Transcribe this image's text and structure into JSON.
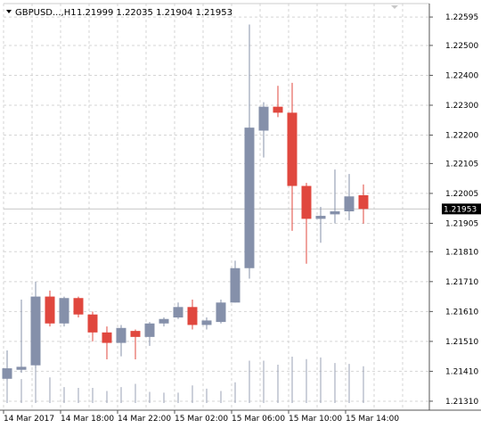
{
  "header": {
    "symbol_label": "GBPUSD...,H1",
    "ohlc_text": "1.21999 1.22035 1.21904 1.21953",
    "menu_arrow": "triangle-down-icon",
    "collapse_arrow": "triangle-down-small-icon"
  },
  "colors": {
    "bull": "#8590aa",
    "bear": "#e0473e",
    "grid": "#d5d5d5",
    "axis": "#555555",
    "price_line": "#c8c8c8",
    "price_tag_bg": "#000000"
  },
  "chart_data": {
    "type": "candlestick",
    "ylim": [
      1.2128,
      1.2264
    ],
    "y_ticks": [
      "1.22595",
      "1.22500",
      "1.22400",
      "1.22300",
      "1.22200",
      "1.22105",
      "1.22005",
      "1.21905",
      "1.21810",
      "1.21710",
      "1.21610",
      "1.21510",
      "1.21410",
      "1.21310"
    ],
    "x_ticks": [
      "14 Mar 2017",
      "14 Mar 18:00",
      "14 Mar 22:00",
      "15 Mar 02:00",
      "15 Mar 06:00",
      "15 Mar 10:00",
      "15 Mar 14:00"
    ],
    "current_price": "1.21953",
    "candles": [
      {
        "o": 1.21385,
        "h": 1.2148,
        "l": 1.2138,
        "c": 1.2142
      },
      {
        "o": 1.21415,
        "h": 1.2165,
        "l": 1.21405,
        "c": 1.21425
      },
      {
        "o": 1.2143,
        "h": 1.2171,
        "l": 1.2142,
        "c": 1.2166
      },
      {
        "o": 1.2166,
        "h": 1.2168,
        "l": 1.2156,
        "c": 1.2157
      },
      {
        "o": 1.2157,
        "h": 1.2166,
        "l": 1.2156,
        "c": 1.21655
      },
      {
        "o": 1.21655,
        "h": 1.2166,
        "l": 1.2159,
        "c": 1.216
      },
      {
        "o": 1.216,
        "h": 1.2161,
        "l": 1.2151,
        "c": 1.2154
      },
      {
        "o": 1.2154,
        "h": 1.2156,
        "l": 1.2145,
        "c": 1.21505
      },
      {
        "o": 1.21505,
        "h": 1.21565,
        "l": 1.2146,
        "c": 1.21555
      },
      {
        "o": 1.21545,
        "h": 1.2155,
        "l": 1.2145,
        "c": 1.21525
      },
      {
        "o": 1.21525,
        "h": 1.21575,
        "l": 1.21495,
        "c": 1.2157
      },
      {
        "o": 1.2157,
        "h": 1.2159,
        "l": 1.2156,
        "c": 1.21585
      },
      {
        "o": 1.2159,
        "h": 1.2164,
        "l": 1.21585,
        "c": 1.21625
      },
      {
        "o": 1.21625,
        "h": 1.2165,
        "l": 1.2155,
        "c": 1.21565
      },
      {
        "o": 1.21565,
        "h": 1.2159,
        "l": 1.2155,
        "c": 1.2158
      },
      {
        "o": 1.21575,
        "h": 1.2165,
        "l": 1.2157,
        "c": 1.2164
      },
      {
        "o": 1.2164,
        "h": 1.2178,
        "l": 1.2164,
        "c": 1.21755
      },
      {
        "o": 1.21755,
        "h": 1.2257,
        "l": 1.2172,
        "c": 1.22225
      },
      {
        "o": 1.22215,
        "h": 1.2231,
        "l": 1.22125,
        "c": 1.22295
      },
      {
        "o": 1.22295,
        "h": 1.22365,
        "l": 1.2226,
        "c": 1.22275
      },
      {
        "o": 1.22275,
        "h": 1.22375,
        "l": 1.2188,
        "c": 1.2203
      },
      {
        "o": 1.2203,
        "h": 1.2204,
        "l": 1.2177,
        "c": 1.2192
      },
      {
        "o": 1.2192,
        "h": 1.2196,
        "l": 1.2184,
        "c": 1.2193
      },
      {
        "o": 1.21935,
        "h": 1.22085,
        "l": 1.21905,
        "c": 1.21945
      },
      {
        "o": 1.21945,
        "h": 1.2207,
        "l": 1.21915,
        "c": 1.21995
      },
      {
        "o": 1.21999,
        "h": 1.22035,
        "l": 1.21904,
        "c": 1.21953
      }
    ],
    "volumes": [
      265,
      150,
      265,
      160,
      100,
      95,
      95,
      75,
      100,
      120,
      70,
      65,
      65,
      110,
      90,
      75,
      130,
      265,
      265,
      240,
      290,
      275,
      285,
      250,
      245,
      230
    ]
  }
}
